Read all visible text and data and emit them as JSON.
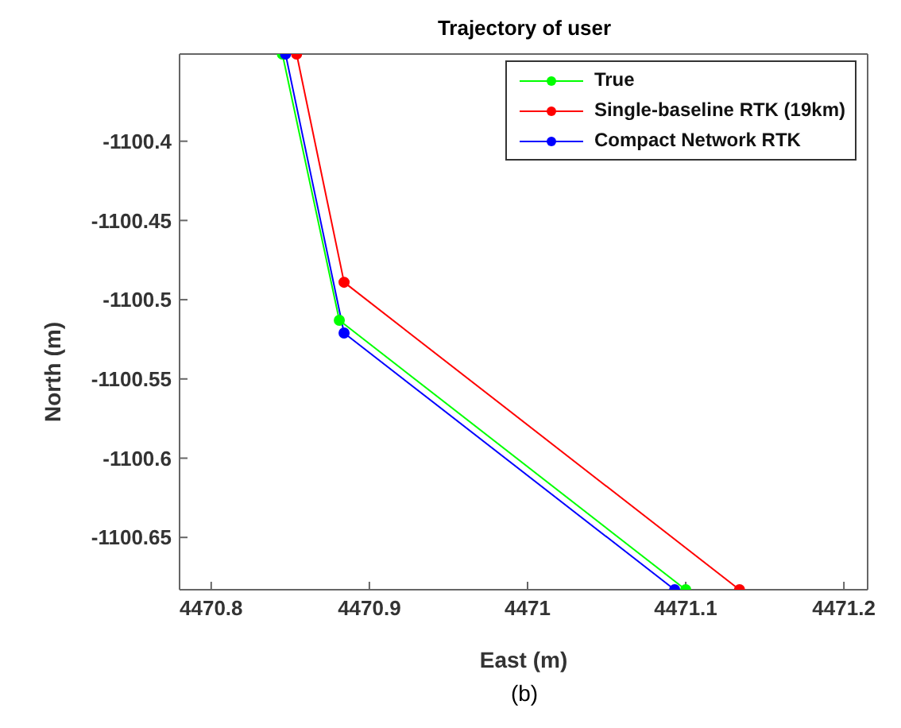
{
  "chart_data": {
    "type": "line",
    "title": "Trajectory of user",
    "xlabel": "East (m)",
    "ylabel": "North (m)",
    "annotations": [
      "(b)"
    ],
    "xlim": [
      4470.78,
      4471.215
    ],
    "ylim": [
      -1100.683,
      -1100.345
    ],
    "xticks": [
      4470.8,
      4470.9,
      4471,
      4471.1,
      4471.2
    ],
    "yticks": [
      -1100.65,
      -1100.6,
      -1100.55,
      -1100.5,
      -1100.45,
      -1100.4
    ],
    "series": [
      {
        "name": "True",
        "color": "#00ff00",
        "x": [
          4470.845,
          4470.881,
          4471.1
        ],
        "values": [
          -1100.345,
          -1100.513,
          -1100.683
        ]
      },
      {
        "name": "Single-baseline RTK (19km)",
        "color": "#ff0000",
        "x": [
          4470.854,
          4470.884,
          4471.134
        ],
        "values": [
          -1100.345,
          -1100.489,
          -1100.683
        ]
      },
      {
        "name": "Compact Network RTK",
        "color": "#0000ff",
        "x": [
          4470.847,
          4470.884,
          4471.093
        ],
        "values": [
          -1100.345,
          -1100.521,
          -1100.683
        ]
      }
    ],
    "legend": "top right",
    "marker": "circle",
    "line_style": "solid"
  }
}
